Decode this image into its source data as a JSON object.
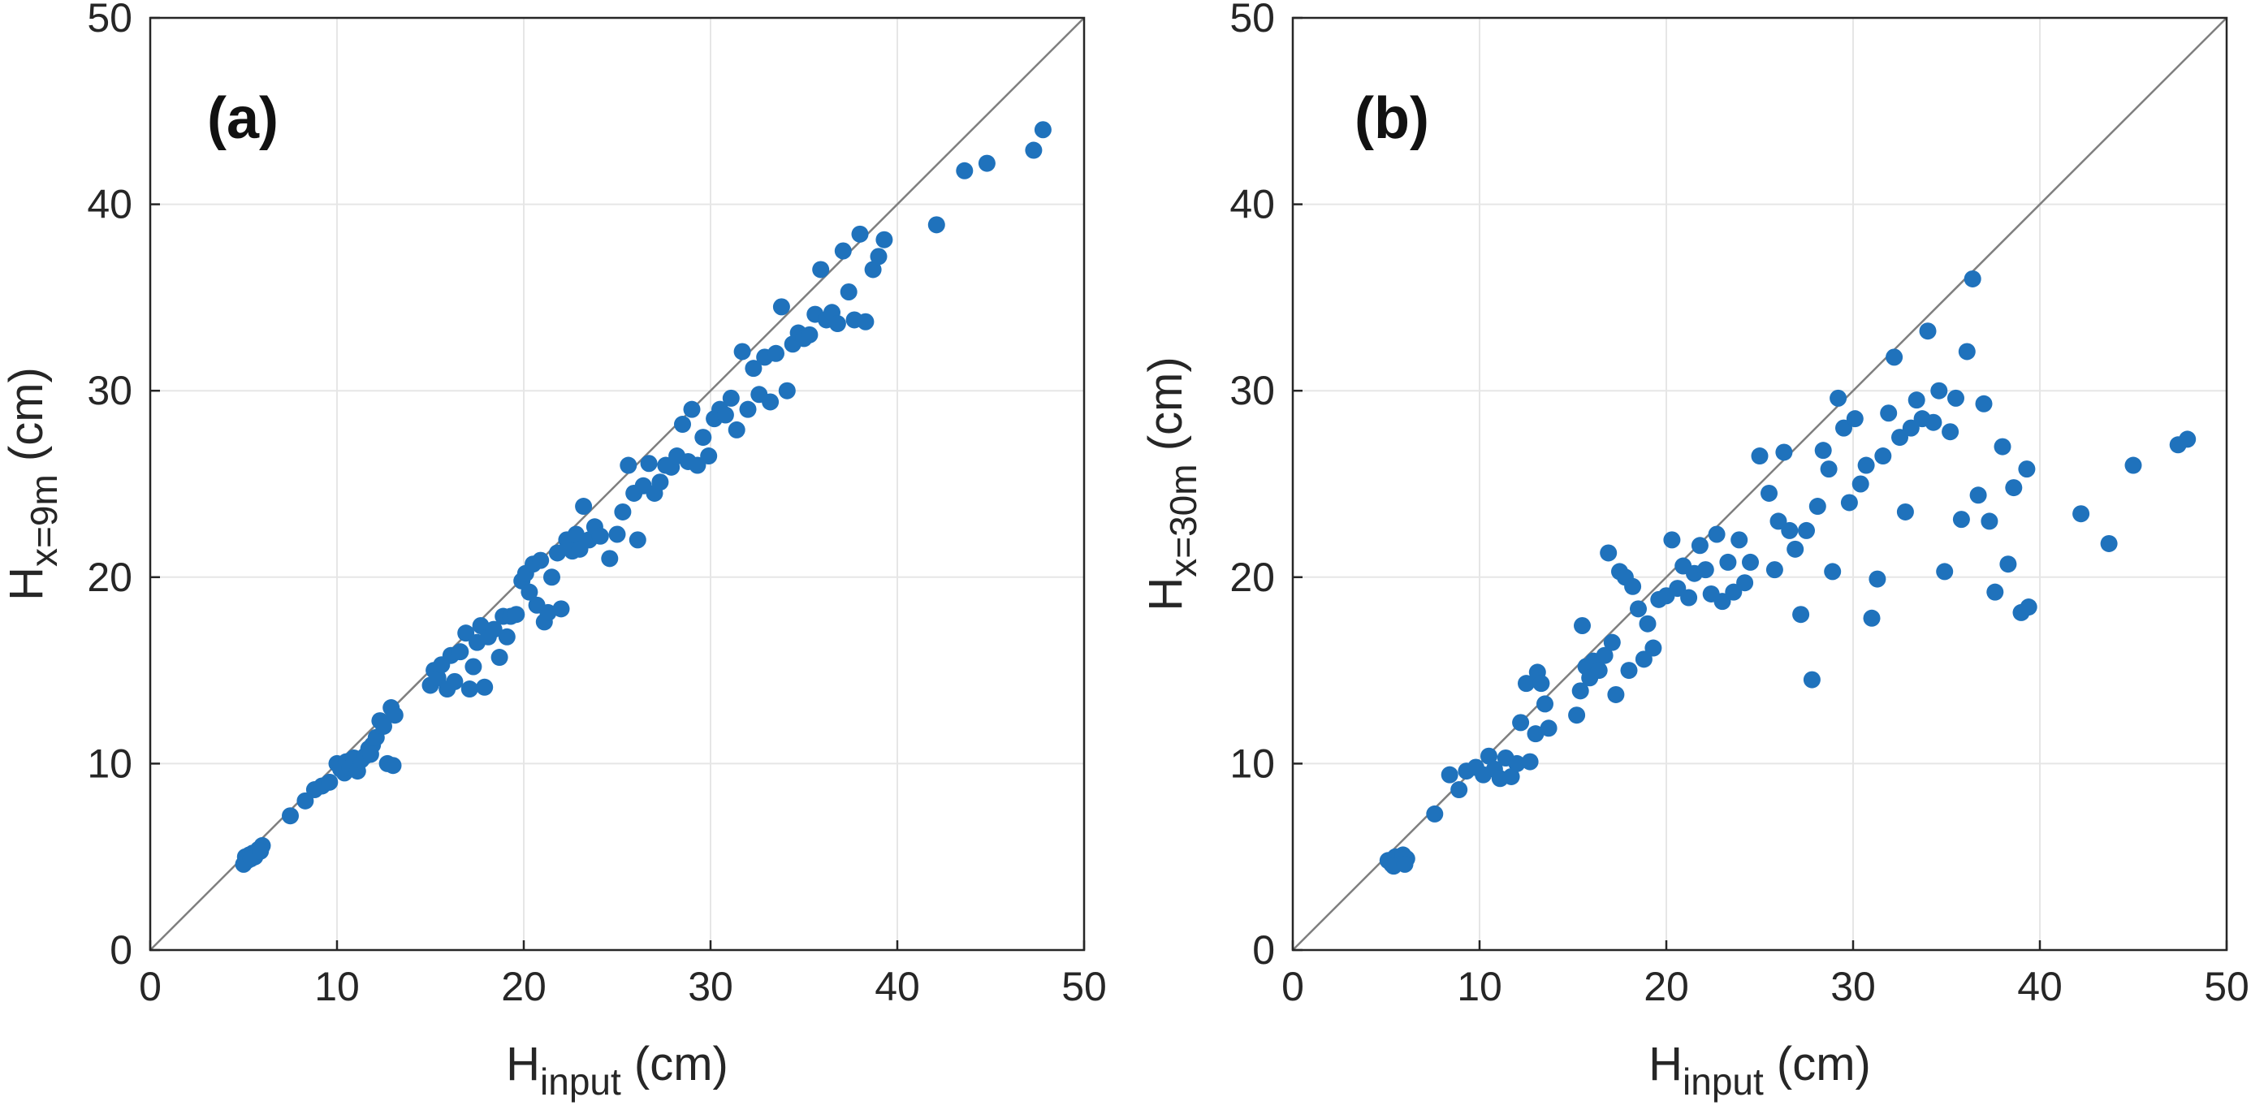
{
  "colors": {
    "marker": "#1f72bc",
    "grid": "#e6e6e6",
    "axis": "#262626",
    "identity_line": "#7f7f7f"
  },
  "chart_data": [
    {
      "type": "scatter",
      "panel_label": "(a)",
      "xlabel": {
        "main": "H",
        "sub": "input",
        "unit": " (cm)"
      },
      "ylabel": {
        "main": "H",
        "sub": "x=9m",
        "unit": " (cm)"
      },
      "xlim": [
        0,
        50
      ],
      "ylim": [
        0,
        50
      ],
      "xticks": [
        "0",
        "10",
        "20",
        "30",
        "40",
        "50"
      ],
      "yticks": [
        "0",
        "10",
        "20",
        "30",
        "40",
        "50"
      ],
      "grid": true,
      "reference_line": "y = x",
      "series": [
        {
          "name": "H_x=9m",
          "points": [
            [
              5.0,
              4.6
            ],
            [
              5.1,
              5.0
            ],
            [
              5.2,
              4.8
            ],
            [
              5.3,
              5.1
            ],
            [
              5.5,
              5.2
            ],
            [
              5.6,
              5.0
            ],
            [
              5.8,
              5.4
            ],
            [
              6.0,
              5.6
            ],
            [
              5.4,
              4.9
            ],
            [
              5.9,
              5.3
            ],
            [
              7.5,
              7.2
            ],
            [
              8.3,
              8.0
            ],
            [
              8.8,
              8.6
            ],
            [
              9.2,
              8.8
            ],
            [
              9.6,
              9.0
            ],
            [
              10.0,
              10.0
            ],
            [
              10.2,
              9.7
            ],
            [
              10.4,
              9.5
            ],
            [
              10.5,
              10.1
            ],
            [
              10.7,
              9.8
            ],
            [
              10.9,
              10.3
            ],
            [
              11.1,
              9.6
            ],
            [
              11.3,
              10.2
            ],
            [
              11.5,
              10.4
            ],
            [
              11.7,
              10.8
            ],
            [
              11.9,
              11.0
            ],
            [
              12.1,
              11.4
            ],
            [
              12.3,
              12.3
            ],
            [
              12.5,
              12.0
            ],
            [
              12.7,
              10.0
            ],
            [
              12.9,
              13.0
            ],
            [
              13.1,
              12.6
            ],
            [
              13.0,
              9.9
            ],
            [
              11.8,
              10.5
            ],
            [
              15.0,
              14.2
            ],
            [
              15.2,
              15.0
            ],
            [
              15.4,
              14.6
            ],
            [
              15.6,
              15.3
            ],
            [
              15.9,
              14.0
            ],
            [
              16.1,
              15.8
            ],
            [
              16.3,
              14.4
            ],
            [
              16.6,
              16.0
            ],
            [
              16.9,
              17.0
            ],
            [
              17.1,
              14.0
            ],
            [
              17.3,
              15.2
            ],
            [
              17.5,
              16.5
            ],
            [
              17.7,
              17.4
            ],
            [
              17.9,
              14.1
            ],
            [
              18.1,
              16.8
            ],
            [
              18.4,
              17.2
            ],
            [
              18.7,
              15.7
            ],
            [
              18.9,
              17.9
            ],
            [
              19.1,
              16.8
            ],
            [
              19.3,
              17.9
            ],
            [
              19.6,
              18.0
            ],
            [
              19.9,
              19.8
            ],
            [
              20.1,
              20.2
            ],
            [
              20.3,
              19.2
            ],
            [
              20.5,
              20.7
            ],
            [
              20.7,
              18.5
            ],
            [
              20.9,
              20.9
            ],
            [
              21.1,
              17.6
            ],
            [
              21.3,
              18.1
            ],
            [
              21.5,
              20.0
            ],
            [
              21.8,
              21.3
            ],
            [
              22.0,
              18.3
            ],
            [
              22.3,
              22.0
            ],
            [
              22.6,
              21.4
            ],
            [
              22.8,
              22.3
            ],
            [
              23.0,
              21.5
            ],
            [
              23.2,
              23.8
            ],
            [
              23.5,
              22.0
            ],
            [
              23.8,
              22.7
            ],
            [
              24.1,
              22.2
            ],
            [
              24.6,
              21.0
            ],
            [
              25.0,
              22.3
            ],
            [
              25.3,
              23.5
            ],
            [
              25.6,
              26.0
            ],
            [
              25.9,
              24.5
            ],
            [
              26.1,
              22.0
            ],
            [
              26.4,
              24.9
            ],
            [
              26.7,
              26.1
            ],
            [
              27.0,
              24.5
            ],
            [
              27.3,
              25.1
            ],
            [
              27.6,
              26.0
            ],
            [
              27.9,
              25.9
            ],
            [
              28.2,
              26.5
            ],
            [
              28.5,
              28.2
            ],
            [
              28.8,
              26.2
            ],
            [
              29.0,
              29.0
            ],
            [
              29.3,
              26.0
            ],
            [
              29.6,
              27.5
            ],
            [
              29.9,
              26.5
            ],
            [
              30.2,
              28.5
            ],
            [
              30.5,
              29.0
            ],
            [
              30.8,
              28.7
            ],
            [
              31.1,
              29.6
            ],
            [
              31.4,
              27.9
            ],
            [
              31.7,
              32.1
            ],
            [
              32.0,
              29.0
            ],
            [
              32.3,
              31.2
            ],
            [
              32.6,
              29.8
            ],
            [
              32.9,
              31.8
            ],
            [
              33.2,
              29.4
            ],
            [
              33.5,
              32.0
            ],
            [
              33.8,
              34.5
            ],
            [
              34.1,
              30.0
            ],
            [
              34.4,
              32.5
            ],
            [
              34.7,
              33.1
            ],
            [
              35.0,
              32.8
            ],
            [
              35.3,
              33.0
            ],
            [
              35.6,
              34.1
            ],
            [
              35.9,
              36.5
            ],
            [
              36.2,
              33.8
            ],
            [
              36.5,
              34.2
            ],
            [
              36.8,
              33.6
            ],
            [
              37.1,
              37.5
            ],
            [
              37.4,
              35.3
            ],
            [
              37.7,
              33.8
            ],
            [
              38.0,
              38.4
            ],
            [
              38.3,
              33.7
            ],
            [
              38.7,
              36.5
            ],
            [
              39.0,
              37.2
            ],
            [
              39.3,
              38.1
            ],
            [
              42.1,
              38.9
            ],
            [
              43.6,
              41.8
            ],
            [
              44.8,
              42.2
            ],
            [
              47.3,
              42.9
            ],
            [
              47.8,
              44.0
            ]
          ]
        }
      ]
    },
    {
      "type": "scatter",
      "panel_label": "(b)",
      "xlabel": {
        "main": "H",
        "sub": "input",
        "unit": " (cm)"
      },
      "ylabel": {
        "main": "H",
        "sub": "x=30m",
        "unit": " (cm)"
      },
      "xlim": [
        0,
        50
      ],
      "ylim": [
        0,
        50
      ],
      "xticks": [
        "0",
        "10",
        "20",
        "30",
        "40",
        "50"
      ],
      "yticks": [
        "0",
        "10",
        "20",
        "30",
        "40",
        "50"
      ],
      "grid": true,
      "reference_line": "y = x",
      "series": [
        {
          "name": "H_x=30m",
          "points": [
            [
              5.1,
              4.8
            ],
            [
              5.3,
              4.6
            ],
            [
              5.5,
              5.0
            ],
            [
              5.7,
              4.7
            ],
            [
              5.9,
              5.1
            ],
            [
              6.1,
              4.9
            ],
            [
              5.4,
              4.5
            ],
            [
              6.0,
              4.6
            ],
            [
              7.6,
              7.3
            ],
            [
              8.4,
              9.4
            ],
            [
              8.9,
              8.6
            ],
            [
              9.3,
              9.6
            ],
            [
              9.8,
              9.8
            ],
            [
              10.2,
              9.4
            ],
            [
              10.5,
              10.4
            ],
            [
              10.8,
              9.7
            ],
            [
              11.1,
              9.2
            ],
            [
              11.4,
              10.3
            ],
            [
              11.7,
              9.3
            ],
            [
              12.0,
              10.0
            ],
            [
              12.2,
              12.2
            ],
            [
              12.5,
              14.3
            ],
            [
              12.7,
              10.1
            ],
            [
              13.0,
              11.6
            ],
            [
              13.1,
              14.9
            ],
            [
              13.3,
              14.3
            ],
            [
              13.5,
              13.2
            ],
            [
              13.7,
              11.9
            ],
            [
              15.2,
              12.6
            ],
            [
              15.4,
              13.9
            ],
            [
              15.5,
              17.4
            ],
            [
              15.7,
              15.2
            ],
            [
              15.9,
              14.6
            ],
            [
              16.1,
              15.5
            ],
            [
              16.4,
              15.0
            ],
            [
              16.7,
              15.8
            ],
            [
              16.9,
              21.3
            ],
            [
              17.1,
              16.5
            ],
            [
              17.3,
              13.7
            ],
            [
              17.5,
              20.3
            ],
            [
              17.8,
              20.0
            ],
            [
              18.0,
              15.0
            ],
            [
              18.2,
              19.5
            ],
            [
              18.5,
              18.3
            ],
            [
              18.8,
              15.6
            ],
            [
              19.0,
              17.5
            ],
            [
              19.3,
              16.2
            ],
            [
              19.6,
              18.8
            ],
            [
              20.0,
              19.0
            ],
            [
              20.3,
              22.0
            ],
            [
              20.6,
              19.4
            ],
            [
              20.9,
              20.6
            ],
            [
              21.2,
              18.9
            ],
            [
              21.5,
              20.2
            ],
            [
              21.8,
              21.7
            ],
            [
              22.1,
              20.4
            ],
            [
              22.4,
              19.1
            ],
            [
              22.7,
              22.3
            ],
            [
              23.0,
              18.7
            ],
            [
              23.3,
              20.8
            ],
            [
              23.6,
              19.2
            ],
            [
              23.9,
              22.0
            ],
            [
              24.2,
              19.7
            ],
            [
              24.5,
              20.8
            ],
            [
              25.0,
              26.5
            ],
            [
              25.5,
              24.5
            ],
            [
              25.8,
              20.4
            ],
            [
              26.0,
              23.0
            ],
            [
              26.3,
              26.7
            ],
            [
              26.6,
              22.5
            ],
            [
              26.9,
              21.5
            ],
            [
              27.2,
              18.0
            ],
            [
              27.5,
              22.5
            ],
            [
              27.8,
              14.5
            ],
            [
              28.1,
              23.8
            ],
            [
              28.4,
              26.8
            ],
            [
              28.7,
              25.8
            ],
            [
              28.9,
              20.3
            ],
            [
              29.2,
              29.6
            ],
            [
              29.5,
              28.0
            ],
            [
              29.8,
              24.0
            ],
            [
              30.1,
              28.5
            ],
            [
              30.4,
              25.0
            ],
            [
              30.7,
              26.0
            ],
            [
              31.0,
              17.8
            ],
            [
              31.3,
              19.9
            ],
            [
              31.6,
              26.5
            ],
            [
              31.9,
              28.8
            ],
            [
              32.2,
              31.8
            ],
            [
              32.5,
              27.5
            ],
            [
              32.8,
              23.5
            ],
            [
              33.1,
              28.0
            ],
            [
              33.4,
              29.5
            ],
            [
              33.7,
              28.5
            ],
            [
              34.0,
              33.2
            ],
            [
              34.3,
              28.3
            ],
            [
              34.6,
              30.0
            ],
            [
              34.9,
              20.3
            ],
            [
              35.2,
              27.8
            ],
            [
              35.5,
              29.6
            ],
            [
              35.8,
              23.1
            ],
            [
              36.1,
              32.1
            ],
            [
              36.4,
              36.0
            ],
            [
              36.7,
              24.4
            ],
            [
              37.0,
              29.3
            ],
            [
              37.3,
              23.0
            ],
            [
              37.6,
              19.2
            ],
            [
              38.0,
              27.0
            ],
            [
              38.3,
              20.7
            ],
            [
              38.6,
              24.8
            ],
            [
              39.0,
              18.1
            ],
            [
              39.3,
              25.8
            ],
            [
              39.4,
              18.4
            ],
            [
              42.2,
              23.4
            ],
            [
              43.7,
              21.8
            ],
            [
              45.0,
              26.0
            ],
            [
              47.4,
              27.1
            ],
            [
              47.9,
              27.4
            ]
          ]
        }
      ]
    }
  ]
}
